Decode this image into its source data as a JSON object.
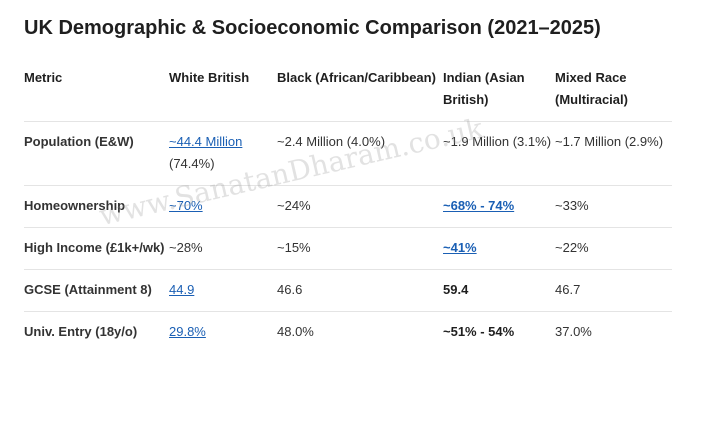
{
  "title": "UK Demographic & Socioeconomic Comparison (2021–2025)",
  "watermark": "www.SanatanDharam.co.uk",
  "headers": [
    "Metric",
    "White British",
    "Black (African/Caribbean)",
    "Indian (Asian British)",
    "Mixed Race (Multiracial)"
  ],
  "rows": [
    {
      "metric": "Population (E&W)",
      "white_link": "~44.4 Million",
      "white_rest": "(74.4%)",
      "black": "~2.4 Million (4.0%)",
      "indian": "~1.9 Million (3.1%)",
      "mixed": "~1.7 Million (2.9%)"
    },
    {
      "metric": "Homeownership",
      "white": "~70%",
      "black": "~24%",
      "indian": "~68% - 74%",
      "mixed": "~33%"
    },
    {
      "metric": "High Income (£1k+/wk)",
      "white": "~28%",
      "black": "~15%",
      "indian": "~41%",
      "mixed": "~22%"
    },
    {
      "metric": "GCSE (Attainment 8)",
      "white": "44.9",
      "black": "46.6",
      "indian": "59.4",
      "mixed": "46.7"
    },
    {
      "metric": "Univ. Entry (18y/o)",
      "white": "29.8%",
      "black": "48.0%",
      "indian": "~51% - 54%",
      "mixed": "37.0%"
    }
  ],
  "colors": {
    "link": "#1a5fb4",
    "divider": "#e4e4e4",
    "text": "#1f1f1f"
  }
}
